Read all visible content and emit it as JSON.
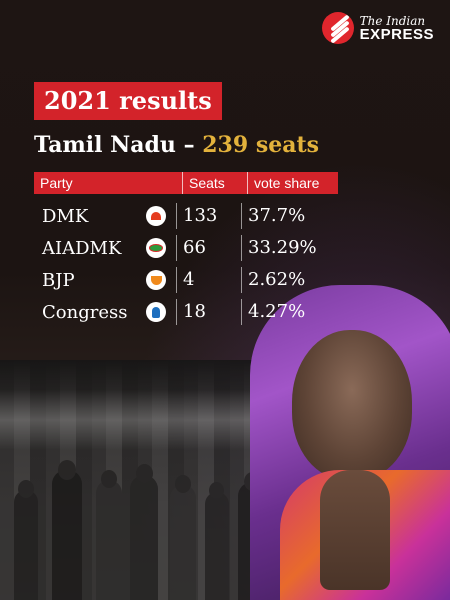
{
  "logo": {
    "line1": "The Indian",
    "line2": "EXPRESS"
  },
  "headline": "2021 results",
  "subtitle": {
    "state": "Tamil Nadu – ",
    "seats": "239 seats"
  },
  "table": {
    "headers": [
      "Party",
      "Seats",
      "vote share"
    ],
    "rows": [
      {
        "party": "DMK",
        "symbol": "rising-sun-icon",
        "seats": "133",
        "vote_share": "37.7%"
      },
      {
        "party": "AIADMK",
        "symbol": "two-leaves-icon",
        "seats": "66",
        "vote_share": "33.29%"
      },
      {
        "party": "BJP",
        "symbol": "lotus-icon",
        "seats": "4",
        "vote_share": "2.62%"
      },
      {
        "party": "Congress",
        "symbol": "hand-icon",
        "seats": "18",
        "vote_share": "4.27%"
      }
    ]
  },
  "colors": {
    "accent_red": "#d3232a",
    "accent_gold": "#e3b23c",
    "background": "#1c1412"
  }
}
